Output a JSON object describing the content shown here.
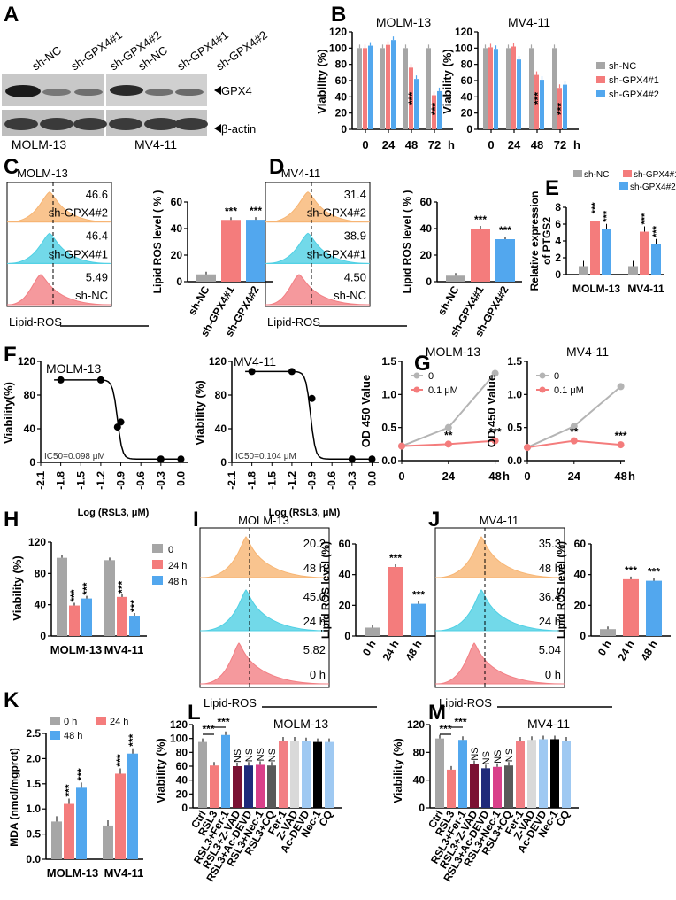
{
  "colors": {
    "gray": "#a6a6a6",
    "red": "#f47c7c",
    "blue": "#52a7ee",
    "orange": "#f7b573",
    "cyan": "#4fd0e4",
    "pink": "#f27f84",
    "dark_red": "#7b1233",
    "dark_blue": "#1f2a7a",
    "magenta": "#d9408a",
    "dark_gray": "#595959",
    "light_gray": "#d9d9d9",
    "light_blue": "#9fc9f2",
    "black": "#000000",
    "line_gray": "#b4b4b4"
  },
  "panel_letters": [
    "A",
    "B",
    "C",
    "D",
    "E",
    "F",
    "G",
    "H",
    "I",
    "J",
    "K",
    "L",
    "M"
  ],
  "A": {
    "lanes_left": [
      "sh-NC",
      "sh-GPX4#1",
      "sh-GPX4#2"
    ],
    "lanes_right": [
      "sh-NC",
      "sh-GPX4#1",
      "sh-GPX4#2"
    ],
    "band1": "GPX4",
    "band2": "β-actin",
    "cell_left": "MOLM-13",
    "cell_right": "MV4-11"
  },
  "B": {
    "ylabel": "Viability (%)",
    "yticks": [
      "0",
      "20",
      "40",
      "60",
      "80",
      "100",
      "120"
    ],
    "xticks": [
      "0",
      "24",
      "48",
      "72"
    ],
    "xunit": "h",
    "legend": [
      "sh-NC",
      "sh-GPX4#1",
      "sh-GPX4#2"
    ],
    "chart_data": [
      {
        "type": "bar",
        "title": "MOLM-13",
        "categories": [
          "0",
          "24",
          "48",
          "72"
        ],
        "ylim": [
          0,
          120
        ],
        "series": [
          {
            "name": "sh-NC",
            "values": [
              100,
              100,
              100,
              100
            ]
          },
          {
            "name": "sh-GPX4#1",
            "values": [
              100,
              104,
              76,
              42
            ]
          },
          {
            "name": "sh-GPX4#2",
            "values": [
              103,
              110,
              62,
              47
            ]
          }
        ],
        "annotations": [
          "",
          "",
          "***",
          "***"
        ]
      },
      {
        "type": "bar",
        "title": "MV4-11",
        "categories": [
          "0",
          "24",
          "48",
          "72"
        ],
        "ylim": [
          0,
          120
        ],
        "series": [
          {
            "name": "sh-NC",
            "values": [
              100,
              100,
              100,
              100
            ]
          },
          {
            "name": "sh-GPX4#1",
            "values": [
              101,
              102,
              67,
              51
            ]
          },
          {
            "name": "sh-GPX4#2",
            "values": [
              99,
              86,
              61,
              55
            ]
          }
        ],
        "annotations": [
          "",
          "",
          "***",
          "***"
        ]
      }
    ]
  },
  "C": {
    "title": "MOLM-13",
    "xlabel": "Lipid-ROS",
    "labels": [
      "sh-GPX4#2",
      "sh-GPX4#1",
      "sh-NC"
    ],
    "values": [
      "46.6",
      "46.4",
      "5.49"
    ],
    "bar_ylabel": "Lipid ROS level ( % )",
    "yticks": [
      "0",
      "20",
      "40",
      "60"
    ],
    "chart_data": {
      "type": "bar",
      "categories": [
        "sh-NC",
        "sh-GPX4#1",
        "sh-GPX4#2"
      ],
      "values": [
        5.5,
        46.5,
        46.6
      ],
      "ylim": [
        0,
        60
      ],
      "annotations": [
        "",
        "***",
        "***"
      ]
    }
  },
  "D": {
    "title": "MV4-11",
    "xlabel": "Lipid-ROS",
    "labels": [
      "sh-GPX4#2",
      "sh-GPX4#1",
      "sh-NC"
    ],
    "values": [
      "31.4",
      "38.9",
      "4.50"
    ],
    "bar_ylabel": "Lipid ROS level ( % )",
    "yticks": [
      "0",
      "20",
      "40",
      "60"
    ],
    "chart_data": {
      "type": "bar",
      "categories": [
        "sh-NC",
        "sh-GPX4#1",
        "sh-GPX4#2"
      ],
      "values": [
        4.5,
        40,
        32
      ],
      "ylim": [
        0,
        60
      ],
      "annotations": [
        "",
        "***",
        "***"
      ]
    }
  },
  "E": {
    "ylabel1": "Relative expression",
    "ylabel2": "of PTGS2",
    "yticks": [
      "0",
      "2",
      "4",
      "6",
      "8"
    ],
    "legend": [
      "sh-NC",
      "sh-GPX4#1",
      "sh-GPX4#2"
    ],
    "chart_data": {
      "type": "bar",
      "categories": [
        "MOLM-13",
        "MV4-11"
      ],
      "ylim": [
        0,
        8
      ],
      "series": [
        {
          "name": "sh-NC",
          "values": [
            1.0,
            1.0
          ]
        },
        {
          "name": "sh-GPX4#1",
          "values": [
            6.4,
            5.1
          ]
        },
        {
          "name": "sh-GPX4#2",
          "values": [
            5.4,
            3.6
          ]
        }
      ],
      "annotations": [
        "***",
        "***"
      ]
    }
  },
  "F": {
    "ylabel_left": "Viability(%)",
    "ylabel_right": "Viability (%)",
    "xlabel": "Log (RSL3, μM)",
    "xticks": [
      "-2.1",
      "-1.8",
      "-1.5",
      "-1.2",
      "-0.9",
      "-0.6",
      "-0.3",
      "0.0"
    ],
    "yticks": [
      "0",
      "40",
      "80",
      "120"
    ],
    "ic50_left": "IC50=0.098 μM",
    "ic50_right": "IC50=0.104 μM",
    "chart_data": [
      {
        "type": "scatter",
        "title": "MOLM-13",
        "x": [
          -1.8,
          -1.2,
          -0.95,
          -0.9,
          -0.3,
          0.0
        ],
        "y": [
          98,
          98,
          42,
          48,
          4,
          4
        ],
        "xlim": [
          -2.1,
          0.1
        ],
        "ylim": [
          0,
          120
        ]
      },
      {
        "type": "scatter",
        "title": "MV4-11",
        "x": [
          -1.8,
          -1.2,
          -0.9,
          -0.3,
          0.0
        ],
        "y": [
          108,
          108,
          76,
          4,
          4
        ],
        "xlim": [
          -2.1,
          0.1
        ],
        "ylim": [
          0,
          120
        ]
      }
    ]
  },
  "G": {
    "ylabel": "OD 450 Value",
    "xticks": [
      "0",
      "24",
      "48"
    ],
    "xunit": "h",
    "yticks": [
      "0.0",
      "0.5",
      "1.0",
      "1.5"
    ],
    "legend": [
      "0",
      "0.1 μM"
    ],
    "chart_data": [
      {
        "type": "line",
        "title": "MOLM-13",
        "x": [
          0,
          24,
          48
        ],
        "ylim": [
          0,
          1.5
        ],
        "series": [
          {
            "name": "0",
            "values": [
              0.22,
              0.5,
              1.32
            ]
          },
          {
            "name": "0.1 μM",
            "values": [
              0.22,
              0.25,
              0.3
            ]
          }
        ],
        "annotations": [
          "",
          "**",
          "***"
        ]
      },
      {
        "type": "line",
        "title": "MV4-11",
        "x": [
          0,
          24,
          48
        ],
        "ylim": [
          0,
          1.5
        ],
        "series": [
          {
            "name": "0",
            "values": [
              0.2,
              0.52,
              1.12
            ]
          },
          {
            "name": "0.1 μM",
            "values": [
              0.2,
              0.3,
              0.24
            ]
          }
        ],
        "annotations": [
          "",
          "**",
          "***"
        ]
      }
    ]
  },
  "H": {
    "ylabel": "Viability (%)",
    "yticks": [
      "0",
      "40",
      "80",
      "120"
    ],
    "legend": [
      "0",
      "24 h",
      "48 h"
    ],
    "chart_data": {
      "type": "bar",
      "categories": [
        "MOLM-13",
        "MV4-11"
      ],
      "ylim": [
        0,
        120
      ],
      "series": [
        {
          "name": "0",
          "values": [
            100,
            97
          ]
        },
        {
          "name": "24 h",
          "values": [
            39,
            50
          ]
        },
        {
          "name": "48 h",
          "values": [
            48,
            26
          ]
        }
      ],
      "annotations": [
        "***",
        "***"
      ]
    }
  },
  "I": {
    "title": "MOLM-13",
    "xlabel": "Lipid-ROS",
    "labels": [
      "48 h",
      "24 h",
      "0 h"
    ],
    "values": [
      "20.2",
      "45.0",
      "5.82"
    ],
    "bar_ylabel": "Lipid ROS level (%)",
    "yticks": [
      "0",
      "20",
      "40",
      "60"
    ],
    "chart_data": {
      "type": "bar",
      "categories": [
        "0 h",
        "24 h",
        "48 h"
      ],
      "values": [
        5.5,
        45,
        21
      ],
      "ylim": [
        0,
        60
      ],
      "annotations": [
        "",
        "***",
        "***"
      ]
    }
  },
  "J": {
    "title": "MV4-11",
    "xlabel": "Lipid-ROS",
    "labels": [
      "48 h",
      "24 h",
      "0 h"
    ],
    "values": [
      "35.3",
      "36.4",
      "5.04"
    ],
    "bar_ylabel": "Lipid ROS level (%)",
    "yticks": [
      "0",
      "20",
      "40",
      "60"
    ],
    "chart_data": {
      "type": "bar",
      "categories": [
        "0 h",
        "24 h",
        "48 h"
      ],
      "values": [
        4.5,
        37,
        36
      ],
      "ylim": [
        0,
        60
      ],
      "annotations": [
        "",
        "***",
        "***"
      ]
    }
  },
  "K": {
    "ylabel": "MDA (nmol/mgprot)",
    "yticks": [
      "0.0",
      "0.5",
      "1.0",
      "1.5",
      "2.0",
      "2.5"
    ],
    "legend": [
      "0 h",
      "24 h",
      "48 h"
    ],
    "chart_data": {
      "type": "bar",
      "categories": [
        "MOLM-13",
        "MV4-11"
      ],
      "ylim": [
        0,
        2.5
      ],
      "series": [
        {
          "name": "0 h",
          "values": [
            0.75,
            0.67
          ]
        },
        {
          "name": "24 h",
          "values": [
            1.1,
            1.7
          ]
        },
        {
          "name": "48 h",
          "values": [
            1.42,
            2.1
          ]
        }
      ],
      "annotations": [
        "***",
        "***"
      ]
    }
  },
  "L": {
    "title": "MOLM-13",
    "ylabel": "Viability (%)",
    "yticks": [
      "0",
      "20",
      "40",
      "60",
      "80",
      "100",
      "120"
    ],
    "sig": [
      "***",
      "***"
    ],
    "ns": "NS",
    "chart_data": {
      "type": "bar",
      "categories": [
        "Ctrl",
        "RSL3",
        "RSL3+Fer-1",
        "RSL3+Z-VAD",
        "RSL3+Ac-DEVD",
        "RSL3+Nec-1",
        "RSL3+CQ",
        "Fer-1",
        "Z-VAD",
        "Ac-DEVD",
        "Nec-1",
        "CQ"
      ],
      "values": [
        95,
        61,
        105,
        60,
        61,
        62,
        61,
        97,
        97,
        96,
        95,
        95
      ],
      "ylim": [
        0,
        120
      ]
    }
  },
  "M": {
    "title": "MV4-11",
    "ylabel": "Viability (%)",
    "yticks": [
      "0",
      "40",
      "80",
      "120"
    ],
    "sig": [
      "***",
      "***"
    ],
    "ns": "NS",
    "chart_data": {
      "type": "bar",
      "categories": [
        "Ctrl",
        "RSL3",
        "RSL3+Fer-1",
        "RSL3+Z-VAD",
        "RSL3+Ac-DEVD",
        "RSL3+Nec-1",
        "RSL3+CQ",
        "Fer-1",
        "Z-VAD",
        "Ac-DEVD",
        "Nec-1",
        "CQ"
      ],
      "values": [
        100,
        55,
        98,
        63,
        57,
        59,
        61,
        97,
        98,
        99,
        99,
        97
      ],
      "ylim": [
        0,
        120
      ]
    }
  }
}
